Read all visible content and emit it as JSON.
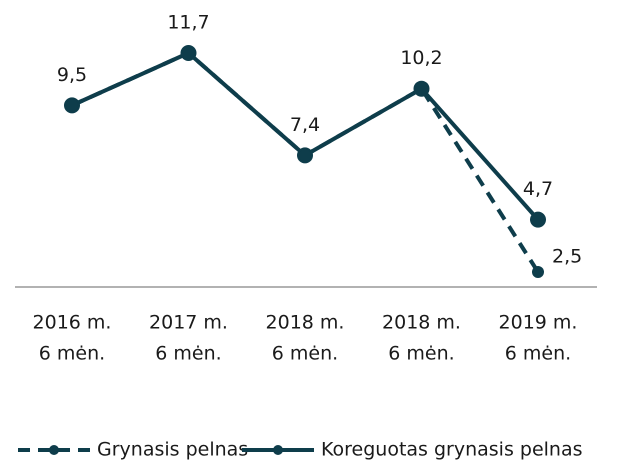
{
  "chart_data": {
    "type": "line",
    "categories": [
      [
        "2016 m.",
        "6 mėn."
      ],
      [
        "2017 m.",
        "6 mėn."
      ],
      [
        "2018 m.",
        "6 mėn."
      ],
      [
        "2018 m.",
        "6 mėn."
      ],
      [
        "2019 m.",
        "6 mėn."
      ]
    ],
    "series": [
      {
        "name": "Grynasis pelnas",
        "color": "#0e3d4b",
        "dashed": true,
        "values": [
          9.5,
          11.7,
          7.4,
          10.2,
          2.5
        ],
        "value_labels": [
          null,
          null,
          null,
          null,
          "2,5"
        ]
      },
      {
        "name": "Koreguotas grynasis pelnas",
        "color": "#0e3d4b",
        "dashed": false,
        "values": [
          9.5,
          11.7,
          7.4,
          10.2,
          4.7
        ],
        "value_labels": [
          "9,5",
          "11,7",
          "7,4",
          "10,2",
          "4,7"
        ]
      }
    ],
    "legend": "bottom"
  }
}
